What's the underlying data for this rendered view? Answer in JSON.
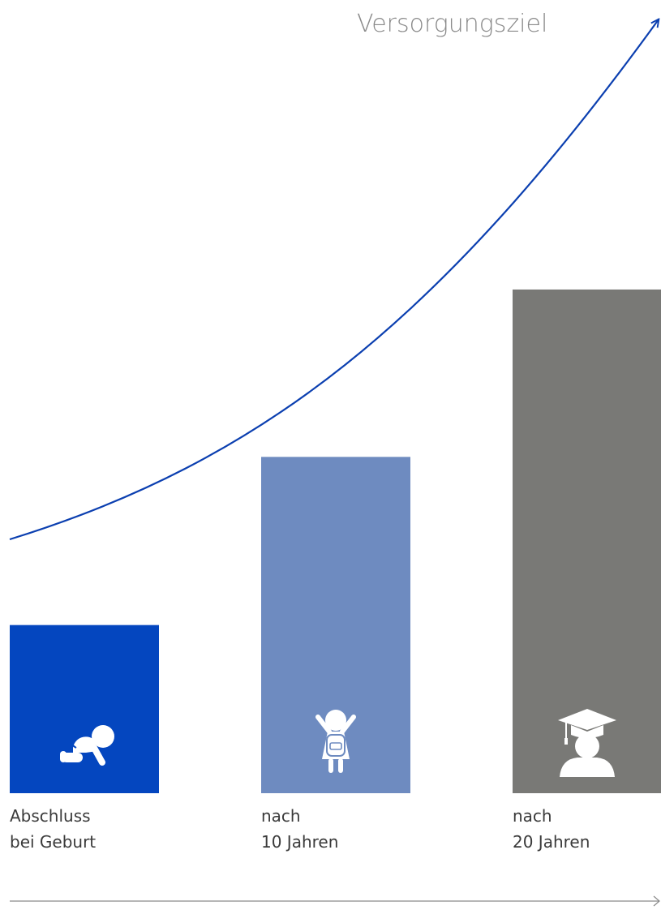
{
  "chart_data": {
    "type": "bar",
    "categories": [
      "Abschluss bei Geburt",
      "nach 10 Jahren",
      "nach 20 Jahren"
    ],
    "values": [
      212,
      424,
      635
    ],
    "labels": [
      {
        "line1": "Abschluss",
        "line2": "bei Geburt"
      },
      {
        "line1": "nach",
        "line2": "10 Jahren"
      },
      {
        "line1": "nach",
        "line2": "20 Jahren"
      }
    ],
    "icons": [
      "crawling-baby-icon",
      "schoolchild-icon",
      "graduate-icon"
    ],
    "colors": [
      "#0446bf",
      "#6e8bc0",
      "#797976"
    ],
    "curve": {
      "label": "Versorgungsziel",
      "color": "#0b3fb0"
    },
    "axis_color": "#8a8a8a",
    "ylim": [
      0,
      1000
    ],
    "xlabel": "",
    "ylabel": ""
  }
}
